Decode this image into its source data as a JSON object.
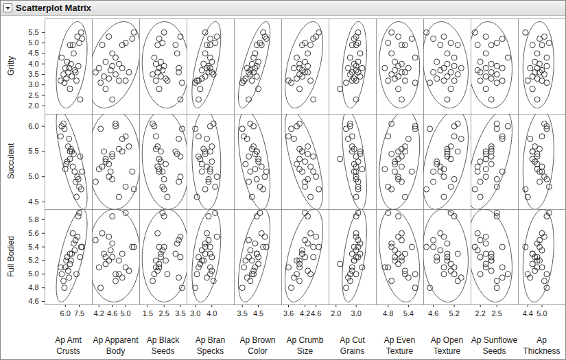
{
  "chart_data": {
    "type": "scatter_matrix",
    "title": "Scatterplot Matrix",
    "marker": "circle",
    "color": "#333333",
    "y_variables": [
      {
        "name": "Gritty",
        "ylim": [
          1.6,
          6.15
        ],
        "yticks": [
          {
            "value": 2,
            "label": "2.0"
          },
          2.5,
          {
            "value": 3,
            "label": "3.0"
          },
          3.5,
          {
            "value": 4,
            "label": "4.0"
          },
          4.5,
          {
            "value": 5,
            "label": "5.0"
          },
          5.5
        ],
        "values": [
          5.3,
          5.2,
          5.0,
          4.9,
          4.9,
          4.5,
          4.3,
          4.1,
          4.0,
          3.9,
          3.8,
          3.8,
          3.7,
          3.6,
          3.6,
          3.5,
          3.4,
          3.3,
          3.2,
          3.2,
          3.1,
          2.8,
          2.3,
          5.5
        ]
      },
      {
        "name": "Succulent",
        "ylim": [
          4.35,
          6.24
        ],
        "yticks": [
          4.5,
          {
            "value": 5,
            "label": "5.0"
          },
          5.5,
          {
            "value": 6,
            "label": "6.0"
          }
        ],
        "values": [
          5.0,
          5.1,
          4.8,
          5.5,
          5.2,
          5.45,
          6.0,
          5.3,
          5.55,
          4.95,
          5.15,
          5.75,
          5.1,
          5.6,
          4.9,
          6.05,
          5.5,
          5.25,
          5.8,
          4.6,
          5.95,
          5.35,
          5.4,
          4.75
        ]
      },
      {
        "name": "Full Bodied",
        "ylim": [
          4.55,
          5.95
        ],
        "yticks": [
          4.6,
          4.8,
          {
            "value": 5,
            "label": "5.0"
          },
          5.2,
          5.4,
          5.6,
          5.8
        ],
        "values": [
          5.55,
          5.4,
          5.9,
          5.3,
          5.6,
          5.45,
          5.0,
          5.25,
          5.2,
          5.85,
          5.1,
          4.95,
          5.35,
          5.05,
          5.5,
          4.9,
          5.3,
          5.2,
          5.1,
          5.0,
          4.8,
          5.15,
          5.25,
          5.4
        ]
      }
    ],
    "x_variables": [
      {
        "name": "Ap Amt Crusts",
        "xlim": [
          3.8,
          8.9
        ],
        "xticks": [
          {
            "value": 6,
            "label": "6.0"
          },
          7.5
        ],
        "values": [
          7.3,
          7.8,
          7.5,
          6.5,
          6.8,
          6.9,
          5.6,
          6.2,
          6.6,
          7.4,
          6.0,
          6.4,
          7.0,
          6.3,
          7.1,
          5.8,
          6.7,
          6.1,
          5.5,
          7.2,
          5.9,
          6.5,
          7.6,
          7.7
        ]
      },
      {
        "name": "Ap Apparent Body",
        "xlim": [
          4.0,
          5.42
        ],
        "xticks": [
          4.2,
          4.6,
          {
            "value": 5,
            "label": "5.0"
          }
        ],
        "values": [
          4.5,
          5.2,
          5.0,
          4.9,
          4.3,
          4.6,
          4.7,
          4.4,
          4.8,
          4.6,
          4.2,
          4.9,
          4.55,
          5.1,
          4.1,
          4.7,
          4.35,
          4.5,
          5.0,
          4.8,
          4.25,
          4.4,
          4.6,
          5.25
        ]
      },
      {
        "name": "Ap Black Seeds",
        "xlim": [
          1.0,
          3.9
        ],
        "xticks": [
          1.5,
          2.5,
          3.5
        ],
        "values": [
          3.5,
          2.2,
          2.4,
          3.2,
          2.1,
          3.3,
          1.9,
          2.3,
          2.0,
          2.5,
          2.2,
          3.4,
          2.4,
          2.1,
          3.4,
          1.8,
          2.3,
          2.6,
          2.0,
          2.7,
          3.6,
          2.2,
          3.5,
          2.5
        ]
      },
      {
        "name": "Ap Bran Specks",
        "xlim": [
          2.5,
          5.35
        ],
        "xticks": [
          {
            "value": 3,
            "label": "3.0"
          },
          {
            "value": 4,
            "label": "4.0"
          }
        ],
        "values": [
          4.3,
          3.9,
          4.2,
          3.9,
          3.7,
          3.6,
          3.9,
          4.0,
          3.5,
          3.8,
          3.9,
          3.7,
          3.4,
          4.0,
          3.8,
          4.1,
          3.6,
          3.4,
          3.2,
          3.1,
          3.0,
          3.3,
          3.2,
          3.6
        ]
      },
      {
        "name": "Ap Brown Color",
        "xlim": [
          3.0,
          5.95
        ],
        "xticks": [
          3.5,
          4.5
        ],
        "values": [
          4.9,
          5.0,
          4.6,
          4.4,
          4.7,
          4.3,
          4.2,
          4.5,
          4.1,
          4.4,
          4.3,
          3.8,
          4.0,
          4.2,
          3.9,
          4.0,
          4.4,
          3.7,
          3.6,
          4.1,
          3.5,
          4.5,
          3.9,
          4.8
        ]
      },
      {
        "name": "Ap Crumb Size",
        "xlim": [
          3.35,
          5.07
        ],
        "xticks": [
          3.6,
          4.2,
          4.6
        ],
        "values": [
          4.6,
          4.5,
          4.2,
          4.1,
          4.4,
          4.3,
          3.9,
          4.2,
          4.0,
          4.3,
          4.0,
          3.8,
          4.1,
          4.3,
          4.2,
          4.0,
          4.1,
          3.9,
          3.6,
          4.4,
          3.7,
          4.0,
          4.5,
          4.7
        ]
      },
      {
        "name": "Ap Cut Grains",
        "xlim": [
          1.65,
          4.0
        ],
        "xticks": [
          {
            "value": 2,
            "label": "2.0"
          },
          {
            "value": 3,
            "label": "3.0"
          }
        ],
        "values": [
          3.0,
          2.9,
          3.1,
          2.8,
          3.0,
          3.2,
          2.7,
          3.1,
          2.9,
          3.0,
          3.3,
          2.6,
          3.0,
          2.8,
          3.1,
          2.7,
          3.2,
          2.9,
          2.8,
          3.0,
          2.5,
          2.2,
          3.0,
          3.1
        ]
      },
      {
        "name": "Ap Even Texture",
        "xlim": [
          4.45,
          5.85
        ],
        "xticks": [
          4.8,
          5.4
        ],
        "values": [
          5.1,
          5.5,
          4.8,
          5.3,
          5.2,
          4.9,
          5.6,
          5.0,
          5.2,
          5.1,
          4.7,
          5.4,
          5.0,
          5.3,
          5.2,
          4.9,
          5.1,
          5.0,
          4.8,
          5.3,
          5.6,
          5.1,
          5.2,
          4.9
        ]
      },
      {
        "name": "Ap Open Texture",
        "xlim": [
          4.32,
          5.68
        ],
        "xticks": [
          4.6,
          5.2
        ],
        "values": [
          4.9,
          4.6,
          5.1,
          5.3,
          4.8,
          5.0,
          5.2,
          4.7,
          5.0,
          5.2,
          4.9,
          5.4,
          4.8,
          5.1,
          4.6,
          5.3,
          5.0,
          4.7,
          5.2,
          4.9,
          4.5,
          5.1,
          5.0,
          4.4
        ]
      },
      {
        "name": "Ap Sunflowe Seeds",
        "xlim": [
          2.03,
          2.89
        ],
        "xticks": [
          2.2,
          2.5
        ],
        "values": [
          2.3,
          2.6,
          2.5,
          2.4,
          2.15,
          2.3,
          2.7,
          2.2,
          2.4,
          2.5,
          2.3,
          2.6,
          2.15,
          2.4,
          2.2,
          2.5,
          2.3,
          2.4,
          2.6,
          2.2,
          2.5,
          2.3,
          2.4,
          2.1
        ]
      },
      {
        "name": "Ap Thickness",
        "xlim": [
          4.0,
          6.0
        ],
        "xticks": [
          4.4,
          {
            "value": 5,
            "label": "5.0"
          }
        ],
        "values": [
          5.1,
          4.9,
          5.3,
          4.6,
          5.0,
          4.8,
          5.2,
          4.7,
          4.9,
          5.2,
          4.8,
          4.5,
          5.0,
          4.7,
          4.9,
          5.1,
          4.6,
          4.8,
          5.0,
          4.4,
          5.2,
          4.6,
          4.8,
          4.3
        ]
      }
    ]
  }
}
